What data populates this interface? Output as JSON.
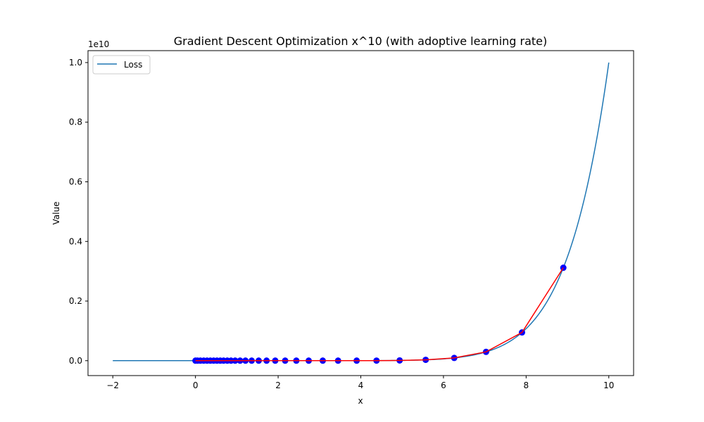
{
  "chart_data": {
    "type": "line",
    "title": "Gradient Descent Optimization x^10 (with adoptive learning rate)",
    "xlabel": "x",
    "ylabel": "Value",
    "xlim": [
      -2.6,
      10.6
    ],
    "ylim": [
      -0.05,
      1.04
    ],
    "x_ticks": [
      -2,
      0,
      2,
      4,
      6,
      8,
      10
    ],
    "x_tick_labels": [
      "−2",
      "0",
      "2",
      "4",
      "6",
      "8",
      "10"
    ],
    "y_ticks": [
      0.0,
      0.2,
      0.4,
      0.6,
      0.8,
      1.0
    ],
    "y_tick_labels": [
      "0.0",
      "0.2",
      "0.4",
      "0.6",
      "0.8",
      "1.0"
    ],
    "y_offset_label": "1e10",
    "grid": false,
    "legend": {
      "placement": "upper-left",
      "entries": [
        {
          "label": "Loss",
          "color": "#1f77b4"
        }
      ]
    },
    "loss_curve": {
      "name": "Loss",
      "function": "x^10",
      "x_range": [
        -2,
        10
      ],
      "color": "#1f77b4"
    },
    "descent_path": {
      "line_color": "#ff0000",
      "marker_color": "#0000ff",
      "x": [
        8.9,
        7.9,
        7.03,
        6.26,
        5.57,
        4.94,
        4.38,
        3.9,
        3.45,
        3.08,
        2.74,
        2.44,
        2.17,
        1.93,
        1.72,
        1.53,
        1.36,
        1.21,
        1.08,
        0.96,
        0.86,
        0.77,
        0.68,
        0.6,
        0.52,
        0.44,
        0.36,
        0.28,
        0.2,
        0.12,
        0.05,
        0.0
      ]
    }
  }
}
